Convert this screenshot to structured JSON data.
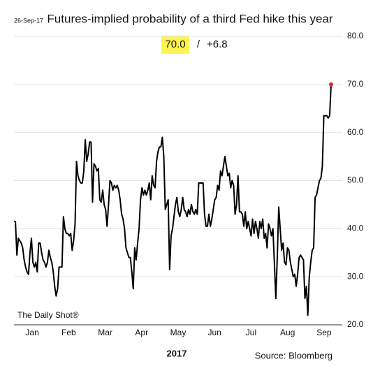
{
  "chart_data": {
    "type": "line",
    "title": "Futures-implied probability of a third Fed hike this year",
    "date": "26-Sep-17",
    "latest_label": "70.0",
    "separator": "/",
    "change_label": "+6.8",
    "watermark": "The Daily Shot®",
    "source": "Source: Bloomberg",
    "x_title": "2017",
    "month_labels": [
      "Jan",
      "Feb",
      "Mar",
      "Apr",
      "May",
      "Jun",
      "Jul",
      "Aug",
      "Sep"
    ],
    "ylim": [
      20,
      80
    ],
    "yticks": [
      {
        "value": 20,
        "label": "20.0"
      },
      {
        "value": 30,
        "label": "30.0"
      },
      {
        "value": 40,
        "label": "40.0"
      },
      {
        "value": 50,
        "label": "50.0"
      },
      {
        "value": 60,
        "label": "60.0"
      },
      {
        "value": 70,
        "label": "70.0"
      },
      {
        "value": 80,
        "label": "80.0"
      }
    ],
    "grid": true,
    "last_point_color": "#e8262a",
    "series": [
      {
        "name": "Probability",
        "color": "#000000",
        "values": [
          41.5,
          41.5,
          34.5,
          38,
          37.5,
          37,
          36,
          33.5,
          32,
          31,
          30.5,
          35,
          38,
          33,
          32,
          33,
          31,
          37,
          37,
          35,
          33.5,
          33,
          32,
          33,
          35.5,
          34,
          33,
          31,
          28,
          26,
          27.5,
          32,
          32,
          32,
          42.5,
          40,
          39,
          39,
          38.5,
          39,
          35.5,
          37.5,
          41,
          54,
          51,
          50,
          49.5,
          49.5,
          52,
          58.5,
          54,
          55.5,
          58,
          58,
          45.5,
          53.5,
          53,
          52,
          52.5,
          46,
          45.5,
          48,
          45,
          44,
          40.5,
          45,
          50,
          49.5,
          48,
          49,
          48.5,
          49,
          48,
          46,
          43,
          42,
          40,
          36,
          35,
          34,
          34,
          31,
          27.5,
          36,
          33.5,
          37,
          40,
          46,
          48.5,
          47,
          48,
          47,
          48,
          49.5,
          46,
          51,
          49,
          48.5,
          54,
          56,
          57,
          57,
          59,
          55,
          44,
          45,
          46,
          31.5,
          38.5,
          40,
          42.5,
          45,
          46.5,
          43.5,
          42.5,
          44,
          46.5,
          44,
          43.5,
          42.5,
          44,
          43,
          45,
          43.5,
          43,
          44,
          43,
          49.5,
          49.5,
          49.5,
          49.5,
          43,
          40.5,
          40.5,
          43,
          40.5,
          42,
          44,
          46,
          46.5,
          49,
          48,
          52,
          51,
          53,
          55,
          53,
          51,
          51.5,
          48.5,
          50,
          49,
          43,
          45,
          51,
          43.5,
          43.5,
          43,
          40.5,
          43.5,
          40,
          41.5,
          40,
          38.5,
          42,
          39,
          41.5,
          40,
          38,
          41.5,
          40,
          42,
          38,
          39,
          36,
          41,
          40,
          38.5,
          40,
          33,
          25.5,
          34,
          44.5,
          40,
          35.5,
          37,
          33,
          32.5,
          36,
          35.5,
          33,
          31.5,
          30,
          30.5,
          28,
          30.5,
          34,
          34.5,
          34,
          33.5,
          25.5,
          28,
          22,
          30,
          33,
          35.5,
          36,
          46.5,
          47,
          48.5,
          50,
          50.5,
          53,
          63.5,
          63.5,
          63.5,
          63,
          63.5,
          70
        ]
      }
    ]
  }
}
